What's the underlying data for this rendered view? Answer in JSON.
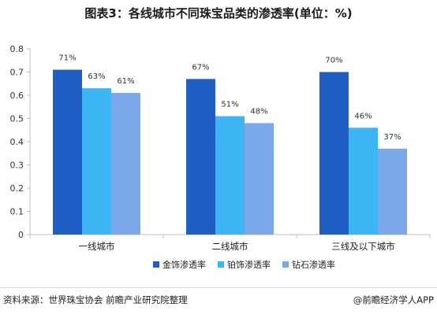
{
  "chart_data": {
    "type": "bar",
    "title": "图表3：各线城市不同珠宝品类的渗透率(单位：%)",
    "categories": [
      "一线城市",
      "二线城市",
      "三线及以下城市"
    ],
    "series": [
      {
        "name": "金饰渗透率",
        "values": [
          0.71,
          0.67,
          0.7
        ],
        "labels": [
          "71%",
          "67%",
          "70%"
        ],
        "color": "#1f5fc4"
      },
      {
        "name": "铂饰渗透率",
        "values": [
          0.63,
          0.51,
          0.46
        ],
        "labels": [
          "63%",
          "51%",
          "46%"
        ],
        "color": "#3db5f5"
      },
      {
        "name": "钻石渗透率",
        "values": [
          0.61,
          0.48,
          0.37
        ],
        "labels": [
          "61%",
          "48%",
          "37%"
        ],
        "color": "#7aa8ea"
      }
    ],
    "ylim": [
      0,
      0.8
    ],
    "yticks": [
      "0",
      "0.1",
      "0.2",
      "0.3",
      "0.4",
      "0.5",
      "0.6",
      "0.7",
      "0.8"
    ],
    "grid": false,
    "legend_position": "bottom"
  },
  "footer": {
    "source": "资料来源：世界珠宝协会 前瞻产业研究院整理",
    "brand": "@前瞻经济学人APP"
  }
}
